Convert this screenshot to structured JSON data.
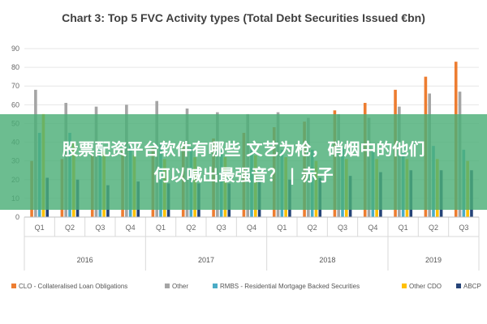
{
  "chart_data": {
    "type": "bar",
    "title": "Chart 3: Top 5 FVC Activity types (Total Debt Securities Issued €bn)",
    "ylim": [
      0,
      90
    ],
    "yticks": [
      0,
      10,
      20,
      30,
      40,
      50,
      60,
      70,
      80,
      90
    ],
    "grid": true,
    "legend_position": "bottom",
    "categories": [
      "Q1",
      "Q2",
      "Q3",
      "Q4",
      "Q1",
      "Q2",
      "Q3",
      "Q4",
      "Q1",
      "Q2",
      "Q3",
      "Q4",
      "Q1",
      "Q2",
      "Q3"
    ],
    "year_groups": [
      {
        "label": "2016",
        "count": 4
      },
      {
        "label": "2017",
        "count": 4
      },
      {
        "label": "2018",
        "count": 4
      },
      {
        "label": "2019",
        "count": 3
      }
    ],
    "series": [
      {
        "name": "CLO - Collateralised Loan Obligations",
        "color": "#ED7D31",
        "values": [
          30,
          31,
          33,
          36,
          38,
          40,
          42,
          45,
          48,
          51,
          57,
          61,
          68,
          75,
          83
        ]
      },
      {
        "name": "Other",
        "color": "#A5A5A5",
        "values": [
          68,
          61,
          59,
          60,
          62,
          58,
          56,
          55,
          56,
          53,
          55,
          53,
          59,
          66,
          67
        ]
      },
      {
        "name": "RMBS - Residential Mortgage Backed Securities",
        "color": "#4BACC6",
        "values": [
          45,
          45,
          40,
          38,
          39,
          37,
          36,
          36,
          36,
          36,
          37,
          36,
          37,
          38,
          36
        ]
      },
      {
        "name": "Other CDO",
        "color": "#FFC000",
        "values": [
          55,
          40,
          35,
          33,
          31,
          32,
          32,
          33,
          32,
          30,
          31,
          31,
          31,
          31,
          30
        ]
      },
      {
        "name": "ABCP",
        "color": "#264478",
        "values": [
          21,
          20,
          17,
          19,
          18,
          18,
          18,
          19,
          20,
          21,
          22,
          24,
          25,
          25,
          25
        ]
      }
    ]
  },
  "overlay": {
    "line1": "股票配资平台软件有哪些 文艺为枪，硝烟中的他们",
    "line2": "何以喊出最强音？ | 赤子"
  }
}
